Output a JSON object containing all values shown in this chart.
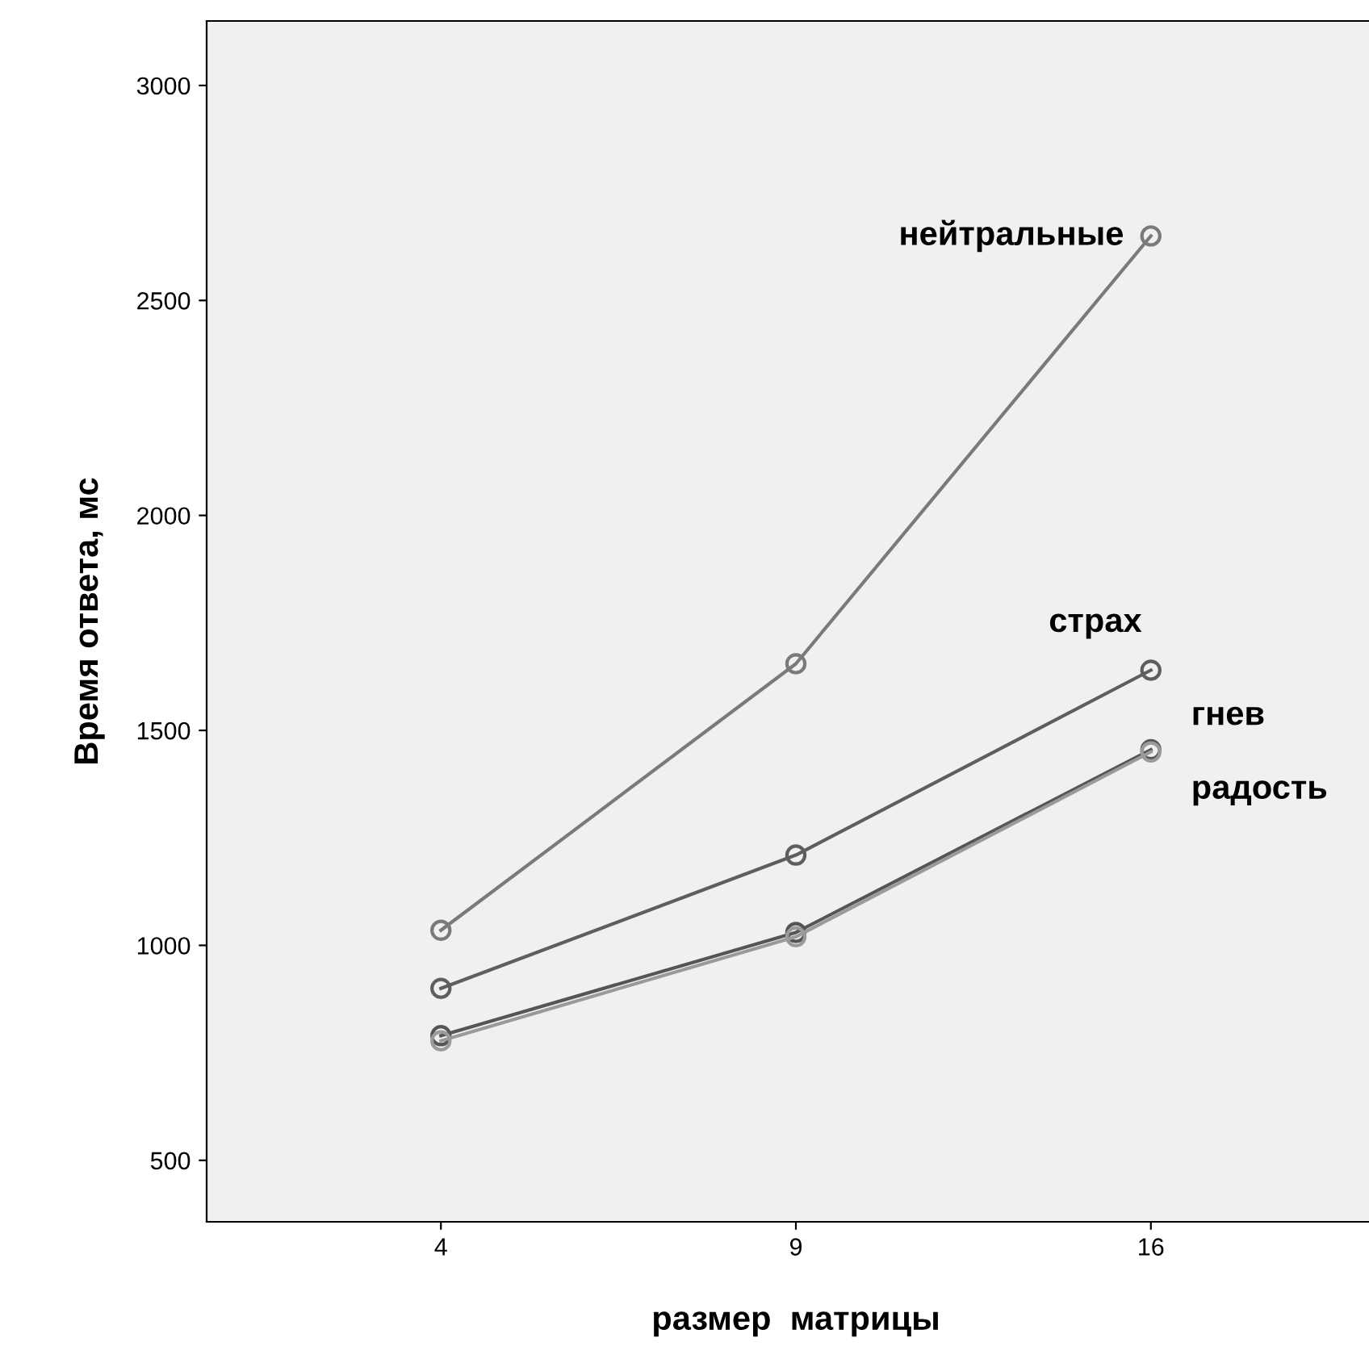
{
  "chart_data": {
    "type": "line",
    "xlabel": "размер  матрицы",
    "ylabel": "Время ответа, мс",
    "categories": [
      "4",
      "9",
      "16"
    ],
    "series": [
      {
        "name": "нейтральные",
        "color": "#7a7a7a",
        "values": [
          1035,
          1655,
          2650
        ]
      },
      {
        "name": "страх",
        "color": "#5e5e5e",
        "values": [
          900,
          1210,
          1640
        ]
      },
      {
        "name": "гнев",
        "color": "#555555",
        "values": [
          790,
          1030,
          1455
        ]
      },
      {
        "name": "радость",
        "color": "#9a9a9a",
        "values": [
          778,
          1020,
          1450
        ]
      }
    ],
    "ylim": [
      357,
      3150
    ],
    "yticks": [
      500,
      1000,
      1500,
      2000,
      2500,
      3000
    ],
    "marker": "circle",
    "line_style": "solid",
    "grid": false,
    "legend": false
  }
}
